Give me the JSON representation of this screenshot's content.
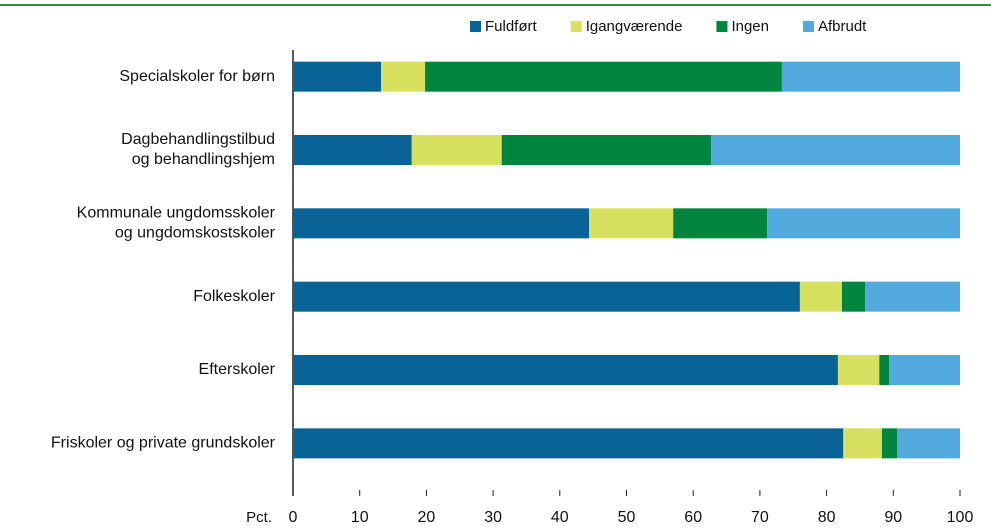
{
  "chart_data": {
    "type": "stacked_barh",
    "categories": [
      [
        "Specialskoler for børn"
      ],
      [
        "Dagbehandlingstilbud",
        "og behandlingshjem"
      ],
      [
        "Kommunale ungdomsskoler",
        "og ungdomskostskoler"
      ],
      [
        "Folkeskoler"
      ],
      [
        "Efterskoler"
      ],
      [
        "Friskoler og private grundskoler"
      ]
    ],
    "series": [
      {
        "name": "Fuldført",
        "color": "#0a6396",
        "values": [
          13.2,
          17.8,
          44.4,
          76.0,
          81.7,
          82.5
        ]
      },
      {
        "name": "Igangværende",
        "color": "#d7e05f",
        "values": [
          6.6,
          13.5,
          12.6,
          6.3,
          6.2,
          5.8
        ]
      },
      {
        "name": "Ingen",
        "color": "#00853e",
        "values": [
          53.5,
          31.4,
          14.1,
          3.5,
          1.5,
          2.3
        ]
      },
      {
        "name": "Afbrudt",
        "color": "#52a9dd",
        "values": [
          26.7,
          37.3,
          28.9,
          14.2,
          10.6,
          9.4
        ]
      }
    ],
    "xlabel": "Pct.",
    "xlim": [
      0,
      100
    ],
    "xticks": [
      0,
      10,
      20,
      30,
      40,
      50,
      60,
      70,
      80,
      90,
      100
    ]
  }
}
